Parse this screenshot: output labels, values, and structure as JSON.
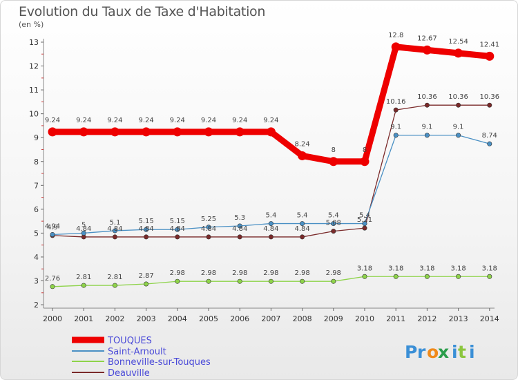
{
  "title": "Evolution du Taux de Taxe d'Habitation",
  "subtitle": "(en %)",
  "logo": "Proxiti",
  "chart_data": {
    "type": "line",
    "title": "Evolution du Taux de Taxe d'Habitation",
    "ylabel": "(en %)",
    "xlabel": "",
    "x": [
      "2000",
      "2001",
      "2002",
      "2003",
      "2004",
      "2005",
      "2006",
      "2007",
      "2008",
      "2009",
      "2010",
      "2011",
      "2012",
      "2013",
      "2014"
    ],
    "ylim": [
      2,
      13
    ],
    "yticks": [
      "2",
      "3",
      "4",
      "5",
      "6",
      "7",
      "8",
      "9",
      "10",
      "11",
      "12",
      "13"
    ],
    "grid": false,
    "legend_position": "bottom-left",
    "series": [
      {
        "name": "TOUQUES",
        "color": "#ee0000",
        "values": [
          9.24,
          9.24,
          9.24,
          9.24,
          9.24,
          9.24,
          9.24,
          9.24,
          8.24,
          8,
          8,
          12.8,
          12.67,
          12.54,
          12.41
        ],
        "labels": [
          "9.24",
          "9.24",
          "9.24",
          "9.24",
          "9.24",
          "9.24",
          "9.24",
          "9.24",
          "8.24",
          "8",
          "8",
          "12.8",
          "12.67",
          "12.54",
          "12.41"
        ]
      },
      {
        "name": "Saint-Arnoult",
        "color": "#4a90c4",
        "values": [
          4.94,
          5,
          5.1,
          5.15,
          5.15,
          5.25,
          5.3,
          5.4,
          5.4,
          5.4,
          5.4,
          9.1,
          9.1,
          9.1,
          8.74
        ],
        "labels": [
          "4.94",
          "5",
          "5.1",
          "5.15",
          "5.15",
          "5.25",
          "5.3",
          "5.4",
          "5.4",
          "5.4",
          "5.4",
          "9.1",
          "9.1",
          "9.1",
          "8.74"
        ]
      },
      {
        "name": "Bonneville-sur-Touques",
        "color": "#8ed34a",
        "values": [
          2.76,
          2.81,
          2.81,
          2.87,
          2.98,
          2.98,
          2.98,
          2.98,
          2.98,
          2.98,
          3.18,
          3.18,
          3.18,
          3.18,
          3.18
        ],
        "labels": [
          "2.76",
          "2.81",
          "2.81",
          "2.87",
          "2.98",
          "2.98",
          "2.98",
          "2.98",
          "2.98",
          "2.98",
          "3.18",
          "3.18",
          "3.18",
          "3.18",
          "3.18"
        ]
      },
      {
        "name": "Deauville",
        "color": "#7a2a2a",
        "values": [
          4.9,
          4.84,
          4.84,
          4.84,
          4.84,
          4.84,
          4.84,
          4.84,
          4.84,
          5.08,
          5.21,
          10.16,
          10.36,
          10.36,
          10.36
        ],
        "labels": [
          "4.9",
          "4.84",
          "4.84",
          "4.84",
          "4.84",
          "4.84",
          "4.84",
          "4.84",
          "4.84",
          "5.08",
          "5.21",
          "10.16",
          "10.36",
          "10.36",
          "10.36"
        ]
      }
    ]
  }
}
